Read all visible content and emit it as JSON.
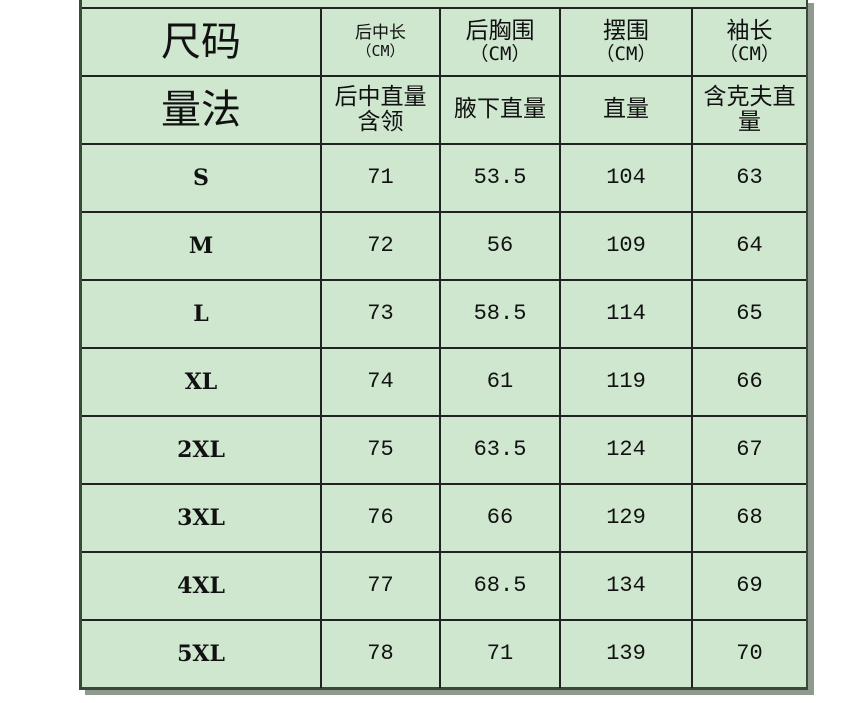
{
  "colors": {
    "background": "#cfe6cf",
    "border": "#222222"
  },
  "header": {
    "size_label": "尺码",
    "method_label": "量法",
    "columns": [
      {
        "name": "后中长",
        "unit": "（CM）",
        "method": "后中直量含领"
      },
      {
        "name": "后胸围",
        "unit": "（CM）",
        "method": "腋下直量"
      },
      {
        "name": "摆围",
        "unit": "（CM）",
        "method": "直量"
      },
      {
        "name": "袖长",
        "unit": "（CM）",
        "method": "含克夫直量"
      }
    ]
  },
  "rows": [
    {
      "size": "S",
      "values": [
        "71",
        "53.5",
        "104",
        "63"
      ]
    },
    {
      "size": "M",
      "values": [
        "72",
        "56",
        "109",
        "64"
      ]
    },
    {
      "size": "L",
      "values": [
        "73",
        "58.5",
        "114",
        "65"
      ]
    },
    {
      "size": "XL",
      "values": [
        "74",
        "61",
        "119",
        "66"
      ]
    },
    {
      "size": "2XL",
      "values": [
        "75",
        "63.5",
        "124",
        "67"
      ]
    },
    {
      "size": "3XL",
      "values": [
        "76",
        "66",
        "129",
        "68"
      ]
    },
    {
      "size": "4XL",
      "values": [
        "77",
        "68.5",
        "134",
        "69"
      ]
    },
    {
      "size": "5XL",
      "values": [
        "78",
        "71",
        "139",
        "70"
      ]
    }
  ]
}
